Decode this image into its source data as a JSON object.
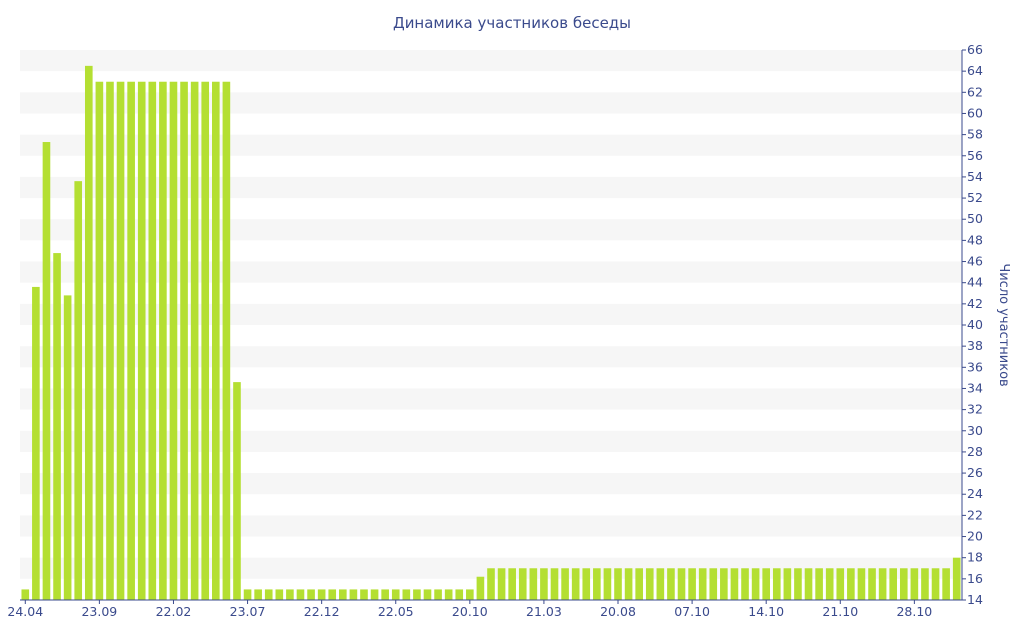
{
  "chart_data": {
    "type": "bar",
    "title": "Динамика участников беседы",
    "ylabel": "Число участников",
    "xlabel": "",
    "ylim": [
      14,
      66
    ],
    "yticks": [
      14,
      16,
      18,
      20,
      22,
      24,
      26,
      28,
      30,
      32,
      34,
      36,
      38,
      40,
      42,
      44,
      46,
      48,
      50,
      52,
      54,
      56,
      58,
      60,
      62,
      64,
      66
    ],
    "x_tick_labels": [
      "24.04",
      "23.09",
      "22.02",
      "23.07",
      "22.12",
      "22.05",
      "20.10",
      "21.03",
      "20.08",
      "07.10",
      "14.10",
      "21.10",
      "28.10"
    ],
    "x_tick_positions": [
      0,
      7,
      14,
      21,
      28,
      35,
      42,
      49,
      56,
      63,
      70,
      77,
      84
    ],
    "grid": "horizontal bands",
    "series": [
      {
        "color": "#b4df32",
        "values": [
          15,
          43.6,
          57.3,
          46.8,
          42.8,
          53.6,
          64.5,
          63,
          63,
          63,
          63,
          63,
          63,
          63,
          63,
          63,
          63,
          63,
          63,
          63,
          34.6,
          15,
          15,
          15,
          15,
          15,
          15,
          15,
          15,
          15,
          15,
          15,
          15,
          15,
          15,
          15,
          15,
          15,
          15,
          15,
          15,
          15,
          15,
          16.2,
          17,
          17,
          17,
          17,
          17,
          17,
          17,
          17,
          17,
          17,
          17,
          17,
          17,
          17,
          17,
          17,
          17,
          17,
          17,
          17,
          17,
          17,
          17,
          17,
          17,
          17,
          17,
          17,
          17,
          17,
          17,
          17,
          17,
          17,
          17,
          17,
          17,
          17,
          17,
          17,
          17,
          17,
          17,
          17,
          18
        ]
      }
    ]
  }
}
